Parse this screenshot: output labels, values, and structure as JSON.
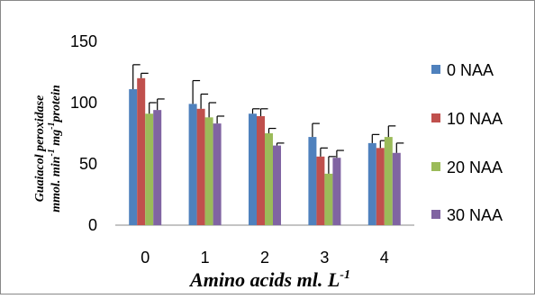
{
  "chart_data": {
    "type": "bar",
    "ylabel_line1": "Guaiacol peroxidase",
    "ylabel_line2_parts": [
      "mmol. min",
      "-1",
      " mg",
      "-1",
      "protein"
    ],
    "xlabel_parts": [
      "Amino acids ml. L",
      "-1"
    ],
    "categories": [
      "0",
      "1",
      "2",
      "3",
      "4"
    ],
    "ylim": [
      0,
      150
    ],
    "yticks": [
      "0",
      "50",
      "100",
      "150"
    ],
    "legend_placement": "right",
    "grid": false,
    "error_bars": "upper only",
    "series": [
      {
        "name": "0 NAA",
        "color": "#4F81BD",
        "values": [
          111,
          99,
          91,
          72,
          67
        ],
        "errors": [
          20,
          19,
          4,
          11,
          7
        ]
      },
      {
        "name": "10 NAA",
        "color": "#C0504D",
        "values": [
          120,
          95,
          89,
          56,
          63
        ],
        "errors": [
          4,
          12,
          6,
          7,
          6
        ]
      },
      {
        "name": "20 NAA",
        "color": "#9BBB59",
        "values": [
          91,
          88,
          75,
          42,
          72
        ],
        "errors": [
          9,
          12,
          4,
          14,
          9
        ]
      },
      {
        "name": "30 NAA",
        "color": "#8064A2",
        "values": [
          94,
          83,
          65,
          55,
          59
        ],
        "errors": [
          9,
          6,
          2,
          6,
          8
        ]
      }
    ]
  }
}
